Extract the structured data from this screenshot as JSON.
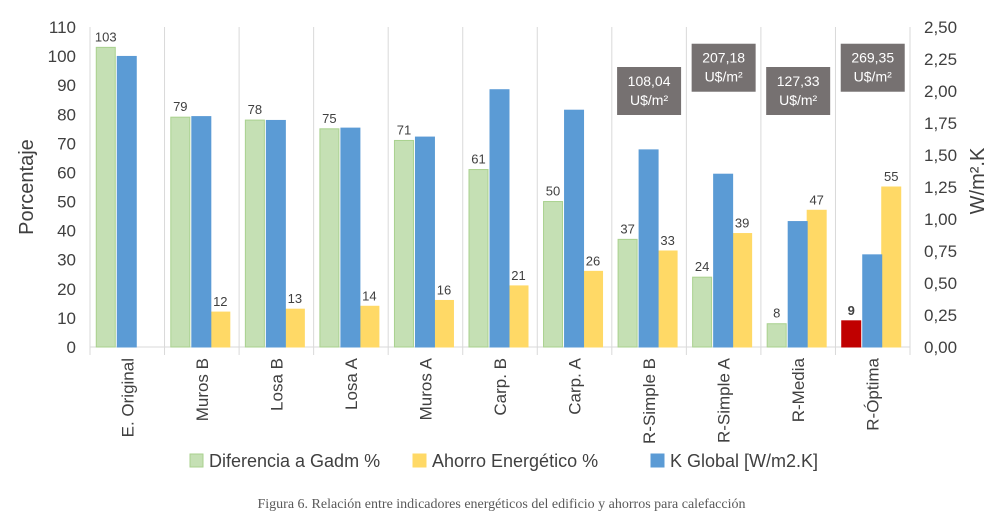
{
  "chart_data": {
    "type": "bar",
    "categories": [
      "E. Original",
      "Muros B",
      "Losa B",
      "Losa A",
      "Muros A",
      "Carp. B",
      "Carp. A",
      "R-Simple B",
      "R-Simple A",
      "R-Media",
      "R-Óptima"
    ],
    "series": [
      {
        "name": "Diferencia a Gadm %",
        "axis": "left",
        "color": "#c5e0b4",
        "stroke": "#a9d18e",
        "values": [
          103,
          79,
          78,
          75,
          71,
          61,
          50,
          37,
          24,
          8,
          9
        ],
        "labels": [
          "103",
          "79",
          "78",
          "75",
          "71",
          "61",
          "50",
          "37",
          "24",
          "8",
          "9"
        ],
        "highlight": {
          "index": 10,
          "color": "#c00000"
        }
      },
      {
        "name": "Ahorro Energético %",
        "axis": "left",
        "color": "#ffd966",
        "stroke": "#ffd966",
        "values": [
          0,
          12,
          13,
          14,
          16,
          21,
          26,
          33,
          39,
          47,
          55
        ],
        "labels": [
          "",
          "12",
          "13",
          "14",
          "16",
          "21",
          "26",
          "33",
          "39",
          "47",
          "55"
        ]
      },
      {
        "name": "K Global  [W/m2.K]",
        "axis": "right",
        "color": "#5b9bd5",
        "stroke": "#5b9bd5",
        "values": [
          2.27,
          1.8,
          1.77,
          1.71,
          1.64,
          2.01,
          1.85,
          1.54,
          1.35,
          0.98,
          0.72
        ]
      }
    ],
    "ylabel": "Porcentaje",
    "y2label": "W/m².K",
    "ylim": [
      0,
      110
    ],
    "y2lim": [
      0,
      2.5
    ],
    "yticks": [
      "0",
      "10",
      "20",
      "30",
      "40",
      "50",
      "60",
      "70",
      "80",
      "90",
      "100",
      "110"
    ],
    "y2ticks": [
      "0,00",
      "0,25",
      "0,50",
      "0,75",
      "1,00",
      "1,25",
      "1,50",
      "1,75",
      "2,00",
      "2,25",
      "2,50"
    ],
    "grid": false,
    "legend_position": "bottom",
    "annotations": [
      {
        "category_index": 7,
        "value": 88,
        "lines": [
          "108,04",
          "U$/m²"
        ]
      },
      {
        "category_index": 8,
        "value": 96,
        "lines": [
          "207,18",
          "U$/m²"
        ]
      },
      {
        "category_index": 9,
        "value": 88,
        "lines": [
          "127,33",
          "U$/m²"
        ]
      },
      {
        "category_index": 10,
        "value": 96,
        "lines": [
          "269,35",
          "U$/m²"
        ]
      }
    ],
    "annotation_color": "#767171",
    "caption": "Figura 6. Relación entre indicadores energéticos del edificio y ahorros para calefacción"
  }
}
